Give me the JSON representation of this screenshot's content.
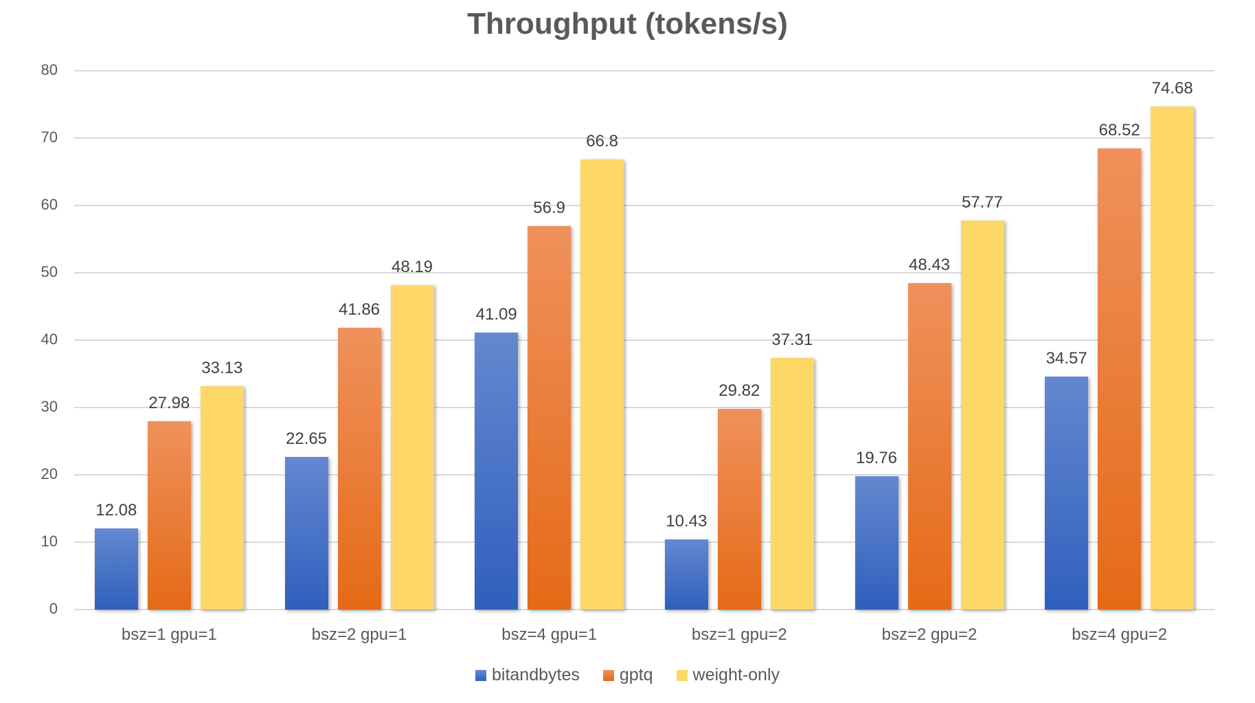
{
  "chart_data": {
    "type": "bar",
    "title": "Throughput (tokens/s)",
    "xlabel": "",
    "ylabel": "",
    "ylim": [
      0,
      80
    ],
    "yticks": [
      "0",
      "10",
      "20",
      "30",
      "40",
      "50",
      "60",
      "70",
      "80"
    ],
    "grid": true,
    "legend_position": "bottom",
    "categories": [
      "bsz=1 gpu=1",
      "bsz=2 gpu=1",
      "bsz=4 gpu=1",
      "bsz=1 gpu=2",
      "bsz=2 gpu=2",
      "bsz=4 gpu=2"
    ],
    "series": [
      {
        "name": "bitandbytes",
        "color": "#4472c4",
        "values": [
          12.08,
          22.65,
          41.09,
          10.43,
          19.76,
          34.57
        ],
        "labels": [
          "12.08",
          "22.65",
          "41.09",
          "10.43",
          "19.76",
          "34.57"
        ]
      },
      {
        "name": "gptq",
        "color": "#ed7d31",
        "values": [
          27.98,
          41.86,
          56.9,
          29.82,
          48.43,
          68.52
        ],
        "labels": [
          "27.98",
          "41.86",
          "56.9",
          "29.82",
          "48.43",
          "68.52"
        ]
      },
      {
        "name": "weight-only",
        "color": "#ffd966",
        "values": [
          33.13,
          48.19,
          66.8,
          37.31,
          57.77,
          74.68
        ],
        "labels": [
          "33.13",
          "48.19",
          "66.8",
          "37.31",
          "57.77",
          "74.68"
        ]
      }
    ]
  }
}
